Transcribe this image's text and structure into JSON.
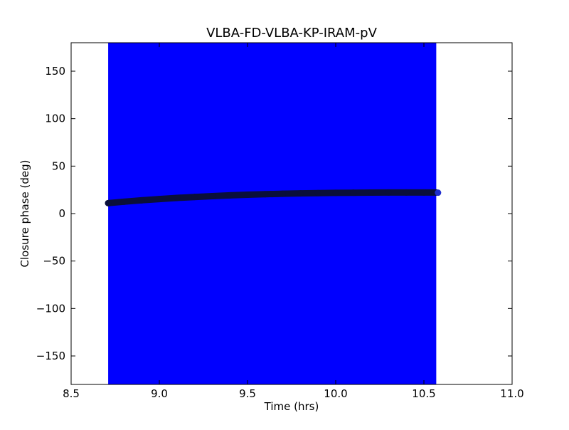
{
  "chart_data": {
    "type": "scatter",
    "title": "VLBA-FD-VLBA-KP-IRAM-pV",
    "xlabel": "Time (hrs)",
    "ylabel": "Closure phase (deg)",
    "xlim": [
      8.5,
      11.0
    ],
    "ylim": [
      -180,
      180
    ],
    "x_ticks": [
      8.5,
      9.0,
      9.5,
      10.0,
      10.5,
      11.0
    ],
    "x_tick_labels": [
      "8.5",
      "9.0",
      "9.5",
      "10.0",
      "10.5",
      "11.0"
    ],
    "y_ticks": [
      150,
      100,
      50,
      0,
      -50,
      -100,
      -150
    ],
    "y_tick_labels": [
      "150",
      "100",
      "50",
      "0",
      "−50",
      "−100",
      "−150"
    ],
    "grid": false,
    "error_band": {
      "x_start": 8.71,
      "x_end": 10.57,
      "color": "#0000ff"
    },
    "series": [
      {
        "color": "#0a0f3a",
        "marker": "circle",
        "x": [
          8.71,
          8.8,
          8.9,
          9.0,
          9.1,
          9.2,
          9.3,
          9.4,
          9.5,
          9.6,
          9.7,
          9.8,
          9.9,
          10.0,
          10.1,
          10.2,
          10.3,
          10.4,
          10.5,
          10.57
        ],
        "y": [
          11,
          12.5,
          14,
          15.3,
          16.5,
          17.5,
          18.4,
          19.2,
          19.9,
          20.4,
          20.9,
          21.3,
          21.6,
          21.8,
          22.0,
          22.1,
          22.2,
          22.2,
          22.2,
          22.2
        ]
      }
    ],
    "end_point": {
      "x": 10.58,
      "y": 22,
      "color": "#1f2ecf"
    }
  }
}
